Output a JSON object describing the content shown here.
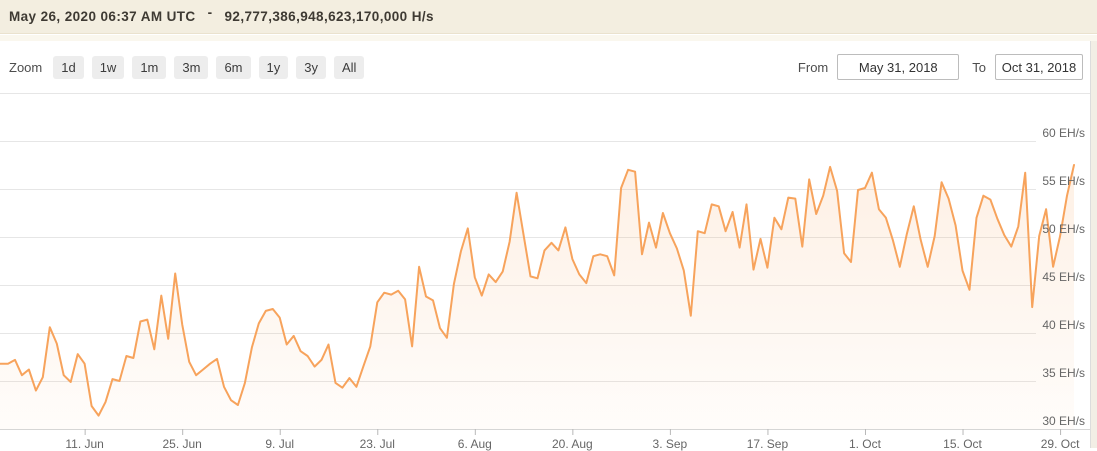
{
  "banner": {
    "timestamp": "May 26, 2020 06:37 AM UTC",
    "separator": "-",
    "hashrate_value": "92,777,386,948,623,170,000 H/s"
  },
  "toolbar": {
    "zoom_label": "Zoom",
    "zoom_buttons": [
      "1d",
      "1w",
      "1m",
      "3m",
      "6m",
      "1y",
      "3y",
      "All"
    ],
    "from_label": "From",
    "from_value": "May 31, 2018",
    "to_label": "To",
    "to_value": "Oct 31, 2018"
  },
  "chart_data": {
    "type": "area",
    "unit": "EH/s",
    "start_date": "May 31, 2018",
    "end_date": "Oct 31, 2018",
    "x_tick_labels": [
      "11. Jun",
      "25. Jun",
      "9. Jul",
      "23. Jul",
      "6. Aug",
      "20. Aug",
      "3. Sep",
      "17. Sep",
      "1. Oct",
      "15. Oct",
      "29. Oct"
    ],
    "x_tick_days": [
      11,
      25,
      39,
      53,
      67,
      81,
      95,
      109,
      123,
      137,
      151
    ],
    "y_ticks": [
      30,
      35,
      40,
      45,
      50,
      55,
      60
    ],
    "y_tick_labels": [
      "30 EH/s",
      "35 EH/s",
      "40 EH/s",
      "45 EH/s",
      "50 EH/s",
      "55 EH/s",
      "60 EH/s"
    ],
    "ylim": [
      30,
      65
    ],
    "grid": true,
    "legend": "none",
    "y_axis_side": "right",
    "line_color": "#f7a35c",
    "values": [
      36.8,
      37.2,
      35.6,
      36.2,
      34.0,
      35.4,
      40.6,
      38.9,
      35.6,
      34.9,
      37.8,
      36.8,
      32.4,
      31.4,
      32.8,
      35.2,
      35.0,
      37.6,
      37.4,
      41.2,
      41.4,
      38.3,
      43.9,
      39.4,
      46.2,
      40.9,
      37.0,
      35.6,
      36.2,
      36.8,
      37.3,
      34.4,
      33.0,
      32.5,
      34.8,
      38.5,
      41.0,
      42.3,
      42.5,
      41.6,
      38.8,
      39.7,
      38.1,
      37.6,
      36.5,
      37.2,
      38.8,
      34.8,
      34.3,
      35.3,
      34.4,
      36.5,
      38.6,
      43.2,
      44.2,
      44.0,
      44.4,
      43.5,
      38.6,
      46.9,
      43.8,
      43.4,
      40.5,
      39.5,
      45.1,
      48.5,
      50.9,
      45.8,
      43.9,
      46.1,
      45.3,
      46.4,
      49.5,
      54.6,
      50.2,
      45.9,
      45.7,
      48.6,
      49.4,
      48.6,
      51.0,
      47.7,
      46.1,
      45.2,
      48.0,
      48.2,
      48.0,
      46.0,
      55.1,
      57.0,
      56.8,
      48.2,
      51.5,
      48.9,
      52.5,
      50.4,
      48.8,
      46.5,
      41.8,
      50.6,
      50.4,
      53.4,
      53.2,
      50.6,
      52.6,
      48.9,
      53.4,
      46.6,
      49.8,
      46.8,
      52.0,
      50.8,
      54.1,
      54.0,
      49.0,
      56.0,
      52.4,
      54.3,
      57.3,
      54.8,
      48.3,
      47.4,
      54.9,
      55.1,
      56.7,
      52.9,
      52.0,
      49.7,
      46.9,
      50.3,
      53.2,
      49.7,
      46.9,
      50.1,
      55.7,
      54.0,
      51.2,
      46.5,
      44.5,
      52.0,
      54.3,
      53.9,
      51.9,
      50.2,
      49.0,
      51.1,
      56.7,
      42.7,
      50.1,
      52.9,
      46.9,
      50.1,
      54.3,
      57.5
    ]
  },
  "colors": {
    "accent_line": "#f7a35c",
    "banner_bg": "#f3eee0",
    "banner_text": "#3e3a33",
    "grid": "#e6e6e6",
    "axis_line": "#d6d6d6",
    "tick": "#b8b8b8",
    "axis_label": "#666666",
    "button_bg": "#ededed",
    "input_border": "#bcbcbc"
  }
}
